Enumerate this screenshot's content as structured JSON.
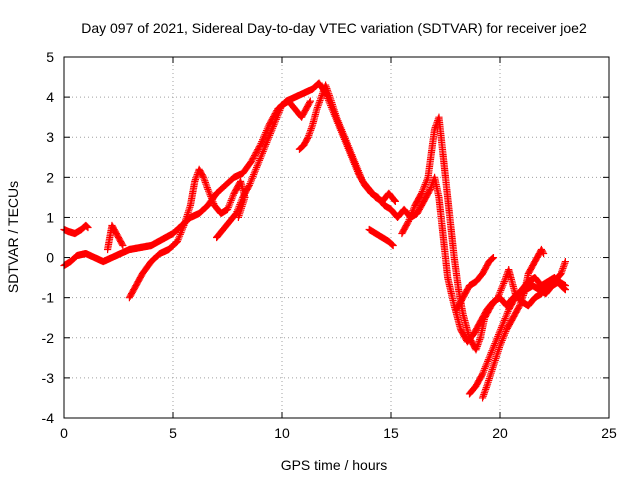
{
  "chart_data": {
    "type": "scatter",
    "title": "Day 097 of 2021, Sidereal Day-to-day VTEC variation (SDTVAR) for receiver joe2",
    "xlabel": "GPS time / hours",
    "ylabel": "SDTVAR / TECUs",
    "xlim": [
      0,
      25
    ],
    "ylim": [
      -4,
      5
    ],
    "xticks": [
      "0",
      "5",
      "10",
      "15",
      "20",
      "25"
    ],
    "yticks": [
      "-4",
      "-3",
      "-2",
      "-1",
      "0",
      "1",
      "2",
      "3",
      "4",
      "5"
    ],
    "grid": true,
    "marker": "+",
    "color": "#ff0000",
    "series": [
      {
        "points": [
          [
            0.0,
            -0.2
          ],
          [
            0.3,
            -0.1
          ],
          [
            0.6,
            0.05
          ],
          [
            1.0,
            0.1
          ],
          [
            1.4,
            0.0
          ],
          [
            1.8,
            -0.1
          ],
          [
            2.2,
            0.0
          ],
          [
            2.6,
            0.1
          ],
          [
            3.0,
            0.2
          ],
          [
            3.5,
            0.25
          ],
          [
            4.0,
            0.3
          ],
          [
            4.5,
            0.45
          ],
          [
            5.0,
            0.6
          ],
          [
            5.4,
            0.8
          ],
          [
            5.8,
            1.0
          ],
          [
            6.2,
            1.1
          ],
          [
            6.6,
            1.3
          ],
          [
            7.0,
            1.6
          ],
          [
            7.4,
            1.8
          ],
          [
            7.8,
            2.0
          ],
          [
            8.2,
            2.1
          ],
          [
            8.6,
            2.4
          ],
          [
            9.0,
            2.8
          ],
          [
            9.4,
            3.3
          ],
          [
            9.8,
            3.7
          ],
          [
            10.2,
            3.9
          ],
          [
            10.6,
            4.0
          ],
          [
            11.0,
            4.1
          ],
          [
            11.4,
            4.2
          ],
          [
            11.7,
            4.35
          ],
          [
            12.0,
            4.1
          ],
          [
            12.3,
            3.7
          ],
          [
            12.6,
            3.3
          ],
          [
            12.9,
            2.9
          ],
          [
            13.2,
            2.5
          ],
          [
            13.5,
            2.1
          ],
          [
            13.8,
            1.8
          ],
          [
            14.1,
            1.6
          ],
          [
            14.4,
            1.5
          ],
          [
            14.7,
            1.3
          ],
          [
            15.0,
            1.2
          ],
          [
            15.3,
            1.0
          ],
          [
            15.6,
            1.2
          ],
          [
            15.9,
            1.0
          ],
          [
            16.2,
            1.1
          ],
          [
            16.5,
            1.4
          ],
          [
            16.8,
            1.7
          ],
          [
            17.0,
            2.0
          ],
          [
            17.2,
            1.5
          ],
          [
            17.4,
            0.5
          ],
          [
            17.6,
            -0.5
          ],
          [
            17.9,
            -1.2
          ],
          [
            18.2,
            -1.8
          ],
          [
            18.5,
            -2.1
          ],
          [
            18.8,
            -1.9
          ],
          [
            19.1,
            -1.6
          ],
          [
            19.4,
            -1.3
          ],
          [
            19.7,
            -1.1
          ],
          [
            20.0,
            -1.0
          ],
          [
            20.3,
            -1.2
          ],
          [
            20.6,
            -1.0
          ],
          [
            20.9,
            -0.9
          ],
          [
            21.2,
            -0.8
          ],
          [
            21.5,
            -0.7
          ],
          [
            21.8,
            -0.8
          ],
          [
            22.1,
            -0.9
          ],
          [
            22.4,
            -0.7
          ],
          [
            22.7,
            -0.6
          ],
          [
            23.0,
            -0.7
          ]
        ]
      },
      {
        "points": [
          [
            0.0,
            0.7
          ],
          [
            0.2,
            0.65
          ],
          [
            0.5,
            0.6
          ],
          [
            0.8,
            0.7
          ],
          [
            1.0,
            0.8
          ],
          [
            1.1,
            0.75
          ]
        ]
      },
      {
        "points": [
          [
            2.0,
            0.2
          ],
          [
            2.1,
            0.5
          ],
          [
            2.2,
            0.8
          ],
          [
            2.3,
            0.7
          ],
          [
            2.5,
            0.5
          ],
          [
            2.7,
            0.3
          ]
        ]
      },
      {
        "points": [
          [
            3.0,
            -1.0
          ],
          [
            3.3,
            -0.7
          ],
          [
            3.6,
            -0.4
          ],
          [
            4.0,
            -0.1
          ],
          [
            4.4,
            0.1
          ],
          [
            4.8,
            0.2
          ],
          [
            5.2,
            0.4
          ],
          [
            5.5,
            0.8
          ],
          [
            5.8,
            1.3
          ],
          [
            6.0,
            1.9
          ],
          [
            6.2,
            2.2
          ],
          [
            6.4,
            2.0
          ],
          [
            6.6,
            1.7
          ],
          [
            6.9,
            1.3
          ],
          [
            7.2,
            1.1
          ],
          [
            7.5,
            1.2
          ],
          [
            7.8,
            1.6
          ],
          [
            8.1,
            1.9
          ],
          [
            8.3,
            1.5
          ],
          [
            8.0,
            1.0
          ]
        ]
      },
      {
        "points": [
          [
            7.0,
            0.5
          ],
          [
            7.3,
            0.7
          ],
          [
            7.6,
            0.9
          ],
          [
            7.9,
            1.1
          ],
          [
            8.2,
            1.5
          ],
          [
            8.5,
            1.8
          ],
          [
            8.8,
            2.2
          ],
          [
            9.1,
            2.6
          ],
          [
            9.4,
            3.0
          ],
          [
            9.7,
            3.4
          ],
          [
            10.0,
            3.8
          ],
          [
            10.3,
            3.9
          ],
          [
            10.6,
            3.7
          ],
          [
            10.9,
            3.5
          ],
          [
            11.1,
            3.7
          ],
          [
            11.3,
            3.9
          ]
        ]
      },
      {
        "points": [
          [
            10.8,
            2.7
          ],
          [
            11.0,
            2.8
          ],
          [
            11.2,
            3.0
          ],
          [
            11.4,
            3.3
          ],
          [
            11.6,
            3.7
          ],
          [
            11.8,
            4.0
          ],
          [
            12.0,
            4.3
          ],
          [
            12.2,
            4.0
          ],
          [
            12.5,
            3.5
          ],
          [
            12.8,
            3.1
          ],
          [
            13.1,
            2.7
          ],
          [
            13.4,
            2.3
          ],
          [
            13.7,
            1.9
          ],
          [
            14.0,
            1.7
          ],
          [
            14.3,
            1.5
          ],
          [
            14.6,
            1.4
          ],
          [
            14.9,
            1.6
          ],
          [
            15.2,
            1.4
          ]
        ]
      },
      {
        "points": [
          [
            14.0,
            0.7
          ],
          [
            14.3,
            0.6
          ],
          [
            14.6,
            0.5
          ],
          [
            14.9,
            0.4
          ],
          [
            15.1,
            0.3
          ]
        ]
      },
      {
        "points": [
          [
            15.5,
            0.6
          ],
          [
            15.8,
            0.9
          ],
          [
            16.1,
            1.3
          ],
          [
            16.4,
            1.6
          ],
          [
            16.7,
            2.0
          ],
          [
            16.9,
            2.8
          ],
          [
            17.0,
            3.2
          ],
          [
            17.2,
            3.5
          ],
          [
            17.3,
            3.0
          ],
          [
            17.5,
            2.0
          ],
          [
            17.7,
            1.0
          ],
          [
            17.9,
            0.0
          ],
          [
            18.1,
            -0.8
          ],
          [
            18.3,
            -1.4
          ],
          [
            18.6,
            -2.0
          ],
          [
            18.9,
            -2.3
          ],
          [
            19.1,
            -2.0
          ],
          [
            19.3,
            -1.5
          ],
          [
            19.6,
            -1.2
          ],
          [
            19.9,
            -1.0
          ],
          [
            20.2,
            -0.6
          ],
          [
            20.4,
            -0.3
          ],
          [
            20.5,
            -0.5
          ],
          [
            20.7,
            -0.9
          ],
          [
            21.0,
            -1.1
          ],
          [
            21.3,
            -1.2
          ],
          [
            21.6,
            -1.0
          ],
          [
            21.9,
            -0.9
          ],
          [
            22.2,
            -0.7
          ],
          [
            22.5,
            -0.6
          ],
          [
            22.8,
            -0.4
          ],
          [
            23.0,
            -0.1
          ]
        ]
      },
      {
        "points": [
          [
            18.6,
            -3.4
          ],
          [
            18.9,
            -3.2
          ],
          [
            19.2,
            -2.9
          ],
          [
            19.5,
            -2.5
          ],
          [
            19.8,
            -2.1
          ],
          [
            20.1,
            -1.7
          ],
          [
            20.4,
            -1.3
          ],
          [
            20.7,
            -1.0
          ],
          [
            21.0,
            -0.8
          ],
          [
            21.3,
            -0.6
          ],
          [
            21.6,
            -0.5
          ],
          [
            21.9,
            -0.7
          ],
          [
            22.2,
            -0.6
          ],
          [
            22.5,
            -0.5
          ],
          [
            22.8,
            -0.7
          ],
          [
            23.0,
            -0.8
          ]
        ]
      },
      {
        "points": [
          [
            19.2,
            -3.5
          ],
          [
            19.4,
            -3.2
          ],
          [
            19.7,
            -2.7
          ],
          [
            20.0,
            -2.2
          ],
          [
            20.3,
            -1.8
          ],
          [
            20.6,
            -1.5
          ],
          [
            20.9,
            -1.2
          ],
          [
            21.1,
            -0.9
          ],
          [
            21.3,
            -0.4
          ],
          [
            21.5,
            -0.2
          ],
          [
            21.7,
            0.0
          ],
          [
            21.9,
            0.2
          ],
          [
            22.0,
            0.1
          ]
        ]
      },
      {
        "points": [
          [
            18.0,
            -1.3
          ],
          [
            18.3,
            -1.0
          ],
          [
            18.6,
            -0.7
          ],
          [
            18.9,
            -0.6
          ],
          [
            19.2,
            -0.4
          ],
          [
            19.5,
            -0.1
          ],
          [
            19.7,
            0.0
          ]
        ]
      }
    ]
  }
}
